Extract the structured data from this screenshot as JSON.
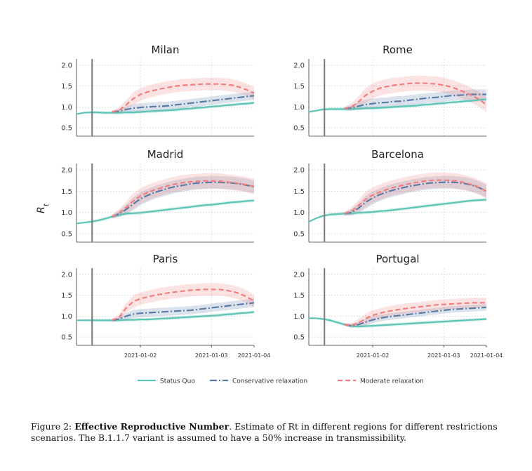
{
  "figure": {
    "caption_label": "Figure 2:",
    "caption_bold": "Effective Reproductive Number",
    "caption_rest": ". Estimate of Rt in different regions for different restrictions scenarios. The B.1.1.7 variant is assumed to have a 50% increase in transmissibility."
  },
  "colors": {
    "status_quo": "#5ec4b6",
    "conservative": "#5a7ca6",
    "moderate": "#f07f7f",
    "intervention_line": "#7a7a7a"
  },
  "chart_data": [
    {
      "type": "line",
      "title": "Milan",
      "ylabel": "",
      "ylim": [
        0.3,
        2.15
      ],
      "yticks": [
        0.5,
        1.0,
        1.5,
        2.0
      ],
      "x_ticks": [],
      "intervention_x": 0.07,
      "x": [
        -0.5,
        -0.4,
        -0.3,
        -0.2,
        -0.1,
        0,
        0.1,
        0.2,
        0.3,
        0.4,
        0.5,
        0.6,
        0.7,
        0.8,
        0.9,
        1.0,
        1.1,
        1.2,
        1.3,
        1.4,
        1.5,
        1.6,
        1.7,
        1.8,
        1.9,
        2.0
      ],
      "series": [
        {
          "name": "Status Quo",
          "values": [
            0.83,
            0.86,
            0.87,
            0.87,
            0.86,
            0.86,
            0.86,
            0.87,
            0.87,
            0.88,
            0.89,
            0.9,
            0.91,
            0.92,
            0.93,
            0.95,
            0.96,
            0.98,
            0.99,
            1.01,
            1.02,
            1.04,
            1.05,
            1.07,
            1.08,
            1.1
          ],
          "band": 0.04
        },
        {
          "name": "Conservative relaxation",
          "values": [
            null,
            null,
            null,
            null,
            null,
            0.88,
            0.9,
            0.94,
            0.97,
            0.99,
            1.0,
            1.01,
            1.02,
            1.03,
            1.05,
            1.07,
            1.09,
            1.11,
            1.13,
            1.15,
            1.17,
            1.19,
            1.21,
            1.23,
            1.25,
            1.27
          ],
          "band": 0.1
        },
        {
          "name": "Moderate relaxation",
          "values": [
            null,
            null,
            null,
            null,
            null,
            0.88,
            0.92,
            1.05,
            1.2,
            1.3,
            1.36,
            1.4,
            1.44,
            1.47,
            1.5,
            1.52,
            1.53,
            1.54,
            1.55,
            1.55,
            1.55,
            1.54,
            1.52,
            1.47,
            1.41,
            1.33
          ],
          "band": 0.15
        }
      ]
    },
    {
      "type": "line",
      "title": "Rome",
      "ylabel": "",
      "ylim": [
        0.3,
        2.15
      ],
      "yticks": [
        0.5,
        1.0,
        1.5,
        2.0
      ],
      "x_ticks": [],
      "intervention_x": 0.07,
      "x": [
        -0.5,
        -0.4,
        -0.3,
        -0.2,
        -0.1,
        0,
        0.1,
        0.2,
        0.3,
        0.4,
        0.5,
        0.6,
        0.7,
        0.8,
        0.9,
        1.0,
        1.1,
        1.2,
        1.3,
        1.4,
        1.5,
        1.6,
        1.7,
        1.8,
        1.9,
        2.0
      ],
      "series": [
        {
          "name": "Status Quo",
          "values": [
            0.88,
            0.91,
            0.94,
            0.95,
            0.95,
            0.95,
            0.95,
            0.96,
            0.97,
            0.97,
            0.98,
            0.99,
            1.0,
            1.01,
            1.02,
            1.03,
            1.05,
            1.06,
            1.08,
            1.09,
            1.11,
            1.12,
            1.14,
            1.15,
            1.17,
            1.18
          ],
          "band": 0.04
        },
        {
          "name": "Conservative relaxation",
          "values": [
            null,
            null,
            null,
            null,
            null,
            0.96,
            0.98,
            1.02,
            1.06,
            1.08,
            1.1,
            1.11,
            1.13,
            1.14,
            1.16,
            1.18,
            1.2,
            1.22,
            1.23,
            1.25,
            1.27,
            1.28,
            1.29,
            1.3,
            1.3,
            1.3
          ],
          "band": 0.12
        },
        {
          "name": "Moderate relaxation",
          "values": [
            null,
            null,
            null,
            null,
            null,
            0.96,
            1.0,
            1.12,
            1.28,
            1.38,
            1.45,
            1.49,
            1.52,
            1.54,
            1.56,
            1.57,
            1.57,
            1.56,
            1.55,
            1.52,
            1.48,
            1.42,
            1.35,
            1.27,
            1.18,
            1.05
          ],
          "band": 0.18
        }
      ]
    },
    {
      "type": "line",
      "title": "Madrid",
      "ylabel": "R_t",
      "ylim": [
        0.3,
        2.15
      ],
      "yticks": [
        0.5,
        1.0,
        1.5,
        2.0
      ],
      "x_ticks": [],
      "intervention_x": 0.07,
      "x": [
        -0.5,
        -0.4,
        -0.3,
        -0.2,
        -0.1,
        0,
        0.1,
        0.2,
        0.3,
        0.4,
        0.5,
        0.6,
        0.7,
        0.8,
        0.9,
        1.0,
        1.1,
        1.2,
        1.3,
        1.4,
        1.5,
        1.6,
        1.7,
        1.8,
        1.9,
        2.0
      ],
      "series": [
        {
          "name": "Status Quo",
          "values": [
            0.74,
            0.76,
            0.78,
            0.81,
            0.85,
            0.9,
            0.94,
            0.97,
            0.98,
            0.99,
            1.01,
            1.03,
            1.05,
            1.07,
            1.09,
            1.11,
            1.13,
            1.15,
            1.17,
            1.18,
            1.2,
            1.22,
            1.24,
            1.25,
            1.27,
            1.28
          ],
          "band": 0.04
        },
        {
          "name": "Conservative relaxation",
          "values": [
            null,
            null,
            null,
            null,
            null,
            0.9,
            0.97,
            1.07,
            1.2,
            1.32,
            1.4,
            1.47,
            1.52,
            1.57,
            1.61,
            1.64,
            1.67,
            1.69,
            1.7,
            1.71,
            1.71,
            1.7,
            1.69,
            1.67,
            1.64,
            1.6
          ],
          "band": 0.15
        },
        {
          "name": "Moderate relaxation",
          "values": [
            null,
            null,
            null,
            null,
            null,
            0.9,
            0.99,
            1.12,
            1.27,
            1.39,
            1.47,
            1.53,
            1.58,
            1.63,
            1.67,
            1.7,
            1.72,
            1.73,
            1.74,
            1.74,
            1.74,
            1.72,
            1.7,
            1.68,
            1.65,
            1.61
          ],
          "band": 0.18
        }
      ]
    },
    {
      "type": "line",
      "title": "Barcelona",
      "ylabel": "",
      "ylim": [
        0.3,
        2.15
      ],
      "yticks": [
        0.5,
        1.0,
        1.5,
        2.0
      ],
      "x_ticks": [],
      "intervention_x": 0.07,
      "x": [
        -0.5,
        -0.4,
        -0.3,
        -0.2,
        -0.1,
        0,
        0.1,
        0.2,
        0.3,
        0.4,
        0.5,
        0.6,
        0.7,
        0.8,
        0.9,
        1.0,
        1.1,
        1.2,
        1.3,
        1.4,
        1.5,
        1.6,
        1.7,
        1.8,
        1.9,
        2.0
      ],
      "series": [
        {
          "name": "Status Quo",
          "values": [
            0.78,
            0.86,
            0.92,
            0.95,
            0.96,
            0.97,
            0.98,
            0.99,
            1.0,
            1.01,
            1.03,
            1.04,
            1.06,
            1.08,
            1.1,
            1.12,
            1.14,
            1.16,
            1.18,
            1.2,
            1.22,
            1.24,
            1.26,
            1.28,
            1.29,
            1.3
          ],
          "band": 0.04
        },
        {
          "name": "Conservative relaxation",
          "values": [
            null,
            null,
            null,
            null,
            null,
            0.97,
            1.0,
            1.1,
            1.24,
            1.34,
            1.42,
            1.48,
            1.53,
            1.57,
            1.61,
            1.64,
            1.67,
            1.69,
            1.7,
            1.71,
            1.71,
            1.7,
            1.68,
            1.64,
            1.58,
            1.5
          ],
          "band": 0.15
        },
        {
          "name": "Moderate relaxation",
          "values": [
            null,
            null,
            null,
            null,
            null,
            0.97,
            1.03,
            1.16,
            1.31,
            1.41,
            1.48,
            1.54,
            1.59,
            1.63,
            1.67,
            1.7,
            1.73,
            1.75,
            1.76,
            1.76,
            1.75,
            1.73,
            1.7,
            1.65,
            1.59,
            1.5
          ],
          "band": 0.18
        }
      ]
    },
    {
      "type": "line",
      "title": "Paris",
      "ylabel": "",
      "ylim": [
        0.3,
        2.15
      ],
      "yticks": [
        0.5,
        1.0,
        1.5,
        2.0
      ],
      "x_ticks": [
        "2021-01-02",
        "2021-01-03",
        "2021-01-04"
      ],
      "intervention_x": 0.07,
      "x": [
        -0.5,
        -0.4,
        -0.3,
        -0.2,
        -0.1,
        0,
        0.1,
        0.2,
        0.3,
        0.4,
        0.5,
        0.6,
        0.7,
        0.8,
        0.9,
        1.0,
        1.1,
        1.2,
        1.3,
        1.4,
        1.5,
        1.6,
        1.7,
        1.8,
        1.9,
        2.0
      ],
      "series": [
        {
          "name": "Status Quo",
          "values": [
            0.9,
            0.9,
            0.9,
            0.9,
            0.9,
            0.9,
            0.9,
            0.91,
            0.91,
            0.92,
            0.92,
            0.93,
            0.94,
            0.95,
            0.96,
            0.97,
            0.98,
            0.99,
            1.0,
            1.01,
            1.02,
            1.04,
            1.05,
            1.07,
            1.08,
            1.1
          ],
          "band": 0.04
        },
        {
          "name": "Conservative relaxation",
          "values": [
            null,
            null,
            null,
            null,
            null,
            0.9,
            0.93,
            1.0,
            1.05,
            1.07,
            1.08,
            1.09,
            1.1,
            1.11,
            1.12,
            1.13,
            1.14,
            1.16,
            1.18,
            1.2,
            1.22,
            1.24,
            1.26,
            1.28,
            1.3,
            1.32
          ],
          "band": 0.1
        },
        {
          "name": "Moderate relaxation",
          "values": [
            null,
            null,
            null,
            null,
            null,
            0.9,
            0.97,
            1.2,
            1.35,
            1.42,
            1.46,
            1.5,
            1.53,
            1.56,
            1.58,
            1.6,
            1.62,
            1.63,
            1.64,
            1.64,
            1.64,
            1.62,
            1.59,
            1.54,
            1.46,
            1.36
          ],
          "band": 0.15
        }
      ]
    },
    {
      "type": "line",
      "title": "Portugal",
      "ylabel": "",
      "ylim": [
        0.3,
        2.15
      ],
      "yticks": [
        0.5,
        1.0,
        1.5,
        2.0
      ],
      "x_ticks": [
        "2021-01-02",
        "2021-01-03",
        "2021-01-04"
      ],
      "intervention_x": 0.07,
      "x": [
        -0.5,
        -0.4,
        -0.3,
        -0.2,
        -0.1,
        0,
        0.1,
        0.2,
        0.3,
        0.4,
        0.5,
        0.6,
        0.7,
        0.8,
        0.9,
        1.0,
        1.1,
        1.2,
        1.3,
        1.4,
        1.5,
        1.6,
        1.7,
        1.8,
        1.9,
        2.0
      ],
      "series": [
        {
          "name": "Status Quo",
          "values": [
            0.95,
            0.95,
            0.93,
            0.9,
            0.85,
            0.8,
            0.76,
            0.75,
            0.76,
            0.77,
            0.78,
            0.79,
            0.8,
            0.81,
            0.82,
            0.83,
            0.84,
            0.85,
            0.86,
            0.87,
            0.88,
            0.89,
            0.9,
            0.91,
            0.92,
            0.93
          ],
          "band": 0.04
        },
        {
          "name": "Conservative relaxation",
          "values": [
            null,
            null,
            null,
            null,
            null,
            0.8,
            0.77,
            0.8,
            0.86,
            0.91,
            0.95,
            0.98,
            1.0,
            1.02,
            1.04,
            1.06,
            1.08,
            1.1,
            1.12,
            1.14,
            1.16,
            1.17,
            1.18,
            1.19,
            1.2,
            1.21
          ],
          "band": 0.08
        },
        {
          "name": "Moderate relaxation",
          "values": [
            null,
            null,
            null,
            null,
            null,
            0.8,
            0.78,
            0.84,
            0.94,
            1.02,
            1.07,
            1.11,
            1.14,
            1.17,
            1.19,
            1.21,
            1.23,
            1.25,
            1.27,
            1.28,
            1.29,
            1.3,
            1.31,
            1.32,
            1.32,
            1.32
          ],
          "band": 0.12
        }
      ]
    }
  ],
  "legend": {
    "items": [
      {
        "label": "Status Quo",
        "style": "solid",
        "series": "status_quo"
      },
      {
        "label": "Conservative relaxation",
        "style": "dashdot",
        "series": "conservative"
      },
      {
        "label": "Moderate relaxation",
        "style": "dashed",
        "series": "moderate"
      }
    ]
  }
}
